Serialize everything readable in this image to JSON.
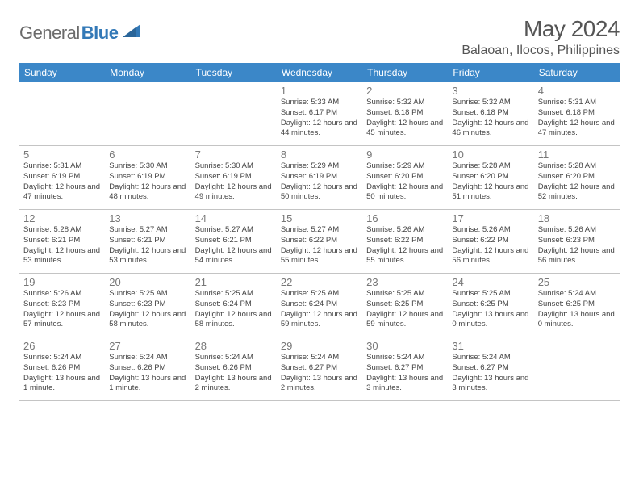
{
  "logo": {
    "text_light": "General",
    "text_bold": "Blue"
  },
  "title": "May 2024",
  "location": "Balaoan, Ilocos, Philippines",
  "weekdays": [
    "Sunday",
    "Monday",
    "Tuesday",
    "Wednesday",
    "Thursday",
    "Friday",
    "Saturday"
  ],
  "colors": {
    "header_bg": "#3b87c8",
    "logo_blue": "#3379b7"
  },
  "weeks": [
    [
      {
        "num": "",
        "sunrise": "",
        "sunset": "",
        "daylight": ""
      },
      {
        "num": "",
        "sunrise": "",
        "sunset": "",
        "daylight": ""
      },
      {
        "num": "",
        "sunrise": "",
        "sunset": "",
        "daylight": ""
      },
      {
        "num": "1",
        "sunrise": "Sunrise: 5:33 AM",
        "sunset": "Sunset: 6:17 PM",
        "daylight": "Daylight: 12 hours and 44 minutes."
      },
      {
        "num": "2",
        "sunrise": "Sunrise: 5:32 AM",
        "sunset": "Sunset: 6:18 PM",
        "daylight": "Daylight: 12 hours and 45 minutes."
      },
      {
        "num": "3",
        "sunrise": "Sunrise: 5:32 AM",
        "sunset": "Sunset: 6:18 PM",
        "daylight": "Daylight: 12 hours and 46 minutes."
      },
      {
        "num": "4",
        "sunrise": "Sunrise: 5:31 AM",
        "sunset": "Sunset: 6:18 PM",
        "daylight": "Daylight: 12 hours and 47 minutes."
      }
    ],
    [
      {
        "num": "5",
        "sunrise": "Sunrise: 5:31 AM",
        "sunset": "Sunset: 6:19 PM",
        "daylight": "Daylight: 12 hours and 47 minutes."
      },
      {
        "num": "6",
        "sunrise": "Sunrise: 5:30 AM",
        "sunset": "Sunset: 6:19 PM",
        "daylight": "Daylight: 12 hours and 48 minutes."
      },
      {
        "num": "7",
        "sunrise": "Sunrise: 5:30 AM",
        "sunset": "Sunset: 6:19 PM",
        "daylight": "Daylight: 12 hours and 49 minutes."
      },
      {
        "num": "8",
        "sunrise": "Sunrise: 5:29 AM",
        "sunset": "Sunset: 6:19 PM",
        "daylight": "Daylight: 12 hours and 50 minutes."
      },
      {
        "num": "9",
        "sunrise": "Sunrise: 5:29 AM",
        "sunset": "Sunset: 6:20 PM",
        "daylight": "Daylight: 12 hours and 50 minutes."
      },
      {
        "num": "10",
        "sunrise": "Sunrise: 5:28 AM",
        "sunset": "Sunset: 6:20 PM",
        "daylight": "Daylight: 12 hours and 51 minutes."
      },
      {
        "num": "11",
        "sunrise": "Sunrise: 5:28 AM",
        "sunset": "Sunset: 6:20 PM",
        "daylight": "Daylight: 12 hours and 52 minutes."
      }
    ],
    [
      {
        "num": "12",
        "sunrise": "Sunrise: 5:28 AM",
        "sunset": "Sunset: 6:21 PM",
        "daylight": "Daylight: 12 hours and 53 minutes."
      },
      {
        "num": "13",
        "sunrise": "Sunrise: 5:27 AM",
        "sunset": "Sunset: 6:21 PM",
        "daylight": "Daylight: 12 hours and 53 minutes."
      },
      {
        "num": "14",
        "sunrise": "Sunrise: 5:27 AM",
        "sunset": "Sunset: 6:21 PM",
        "daylight": "Daylight: 12 hours and 54 minutes."
      },
      {
        "num": "15",
        "sunrise": "Sunrise: 5:27 AM",
        "sunset": "Sunset: 6:22 PM",
        "daylight": "Daylight: 12 hours and 55 minutes."
      },
      {
        "num": "16",
        "sunrise": "Sunrise: 5:26 AM",
        "sunset": "Sunset: 6:22 PM",
        "daylight": "Daylight: 12 hours and 55 minutes."
      },
      {
        "num": "17",
        "sunrise": "Sunrise: 5:26 AM",
        "sunset": "Sunset: 6:22 PM",
        "daylight": "Daylight: 12 hours and 56 minutes."
      },
      {
        "num": "18",
        "sunrise": "Sunrise: 5:26 AM",
        "sunset": "Sunset: 6:23 PM",
        "daylight": "Daylight: 12 hours and 56 minutes."
      }
    ],
    [
      {
        "num": "19",
        "sunrise": "Sunrise: 5:26 AM",
        "sunset": "Sunset: 6:23 PM",
        "daylight": "Daylight: 12 hours and 57 minutes."
      },
      {
        "num": "20",
        "sunrise": "Sunrise: 5:25 AM",
        "sunset": "Sunset: 6:23 PM",
        "daylight": "Daylight: 12 hours and 58 minutes."
      },
      {
        "num": "21",
        "sunrise": "Sunrise: 5:25 AM",
        "sunset": "Sunset: 6:24 PM",
        "daylight": "Daylight: 12 hours and 58 minutes."
      },
      {
        "num": "22",
        "sunrise": "Sunrise: 5:25 AM",
        "sunset": "Sunset: 6:24 PM",
        "daylight": "Daylight: 12 hours and 59 minutes."
      },
      {
        "num": "23",
        "sunrise": "Sunrise: 5:25 AM",
        "sunset": "Sunset: 6:25 PM",
        "daylight": "Daylight: 12 hours and 59 minutes."
      },
      {
        "num": "24",
        "sunrise": "Sunrise: 5:25 AM",
        "sunset": "Sunset: 6:25 PM",
        "daylight": "Daylight: 13 hours and 0 minutes."
      },
      {
        "num": "25",
        "sunrise": "Sunrise: 5:24 AM",
        "sunset": "Sunset: 6:25 PM",
        "daylight": "Daylight: 13 hours and 0 minutes."
      }
    ],
    [
      {
        "num": "26",
        "sunrise": "Sunrise: 5:24 AM",
        "sunset": "Sunset: 6:26 PM",
        "daylight": "Daylight: 13 hours and 1 minute."
      },
      {
        "num": "27",
        "sunrise": "Sunrise: 5:24 AM",
        "sunset": "Sunset: 6:26 PM",
        "daylight": "Daylight: 13 hours and 1 minute."
      },
      {
        "num": "28",
        "sunrise": "Sunrise: 5:24 AM",
        "sunset": "Sunset: 6:26 PM",
        "daylight": "Daylight: 13 hours and 2 minutes."
      },
      {
        "num": "29",
        "sunrise": "Sunrise: 5:24 AM",
        "sunset": "Sunset: 6:27 PM",
        "daylight": "Daylight: 13 hours and 2 minutes."
      },
      {
        "num": "30",
        "sunrise": "Sunrise: 5:24 AM",
        "sunset": "Sunset: 6:27 PM",
        "daylight": "Daylight: 13 hours and 3 minutes."
      },
      {
        "num": "31",
        "sunrise": "Sunrise: 5:24 AM",
        "sunset": "Sunset: 6:27 PM",
        "daylight": "Daylight: 13 hours and 3 minutes."
      },
      {
        "num": "",
        "sunrise": "",
        "sunset": "",
        "daylight": ""
      }
    ]
  ]
}
